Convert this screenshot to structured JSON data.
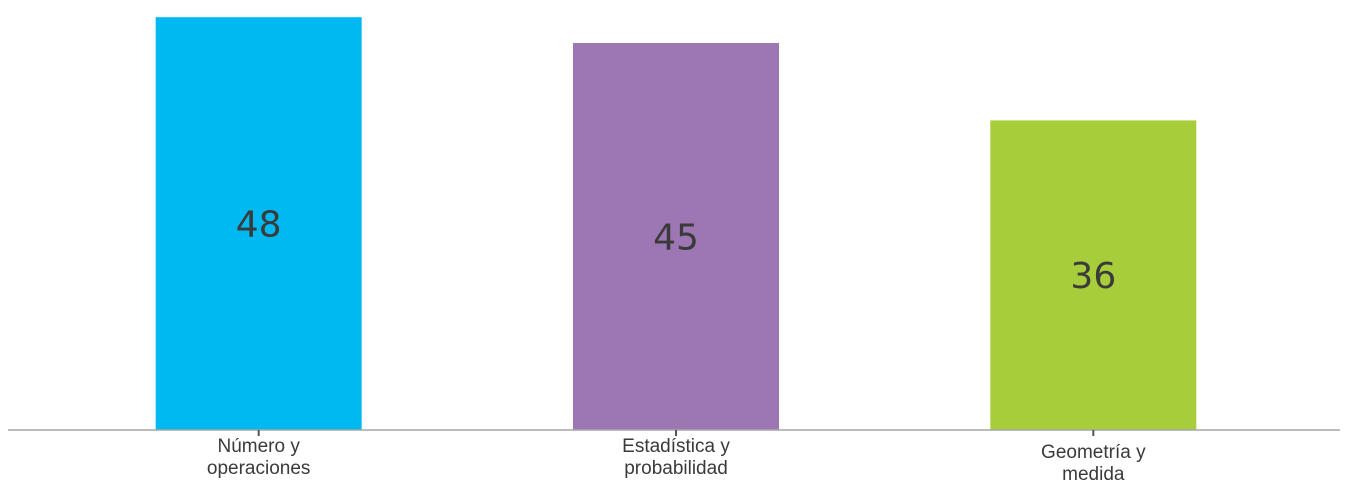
{
  "chart_data": {
    "type": "bar",
    "categories": [
      [
        "Número y",
        "operaciones"
      ],
      [
        "Estadística y",
        "probabilidad"
      ],
      [
        "Geometría y",
        "medida"
      ]
    ],
    "values": [
      48,
      45,
      36
    ],
    "colors": [
      "#00B9F1",
      "#9D76B4",
      "#A7CE3A"
    ],
    "ylim": [
      0,
      50
    ],
    "axis_color": "#a6a6a6",
    "text_color": "#3a3a3a",
    "grid": false,
    "legend": "none"
  }
}
